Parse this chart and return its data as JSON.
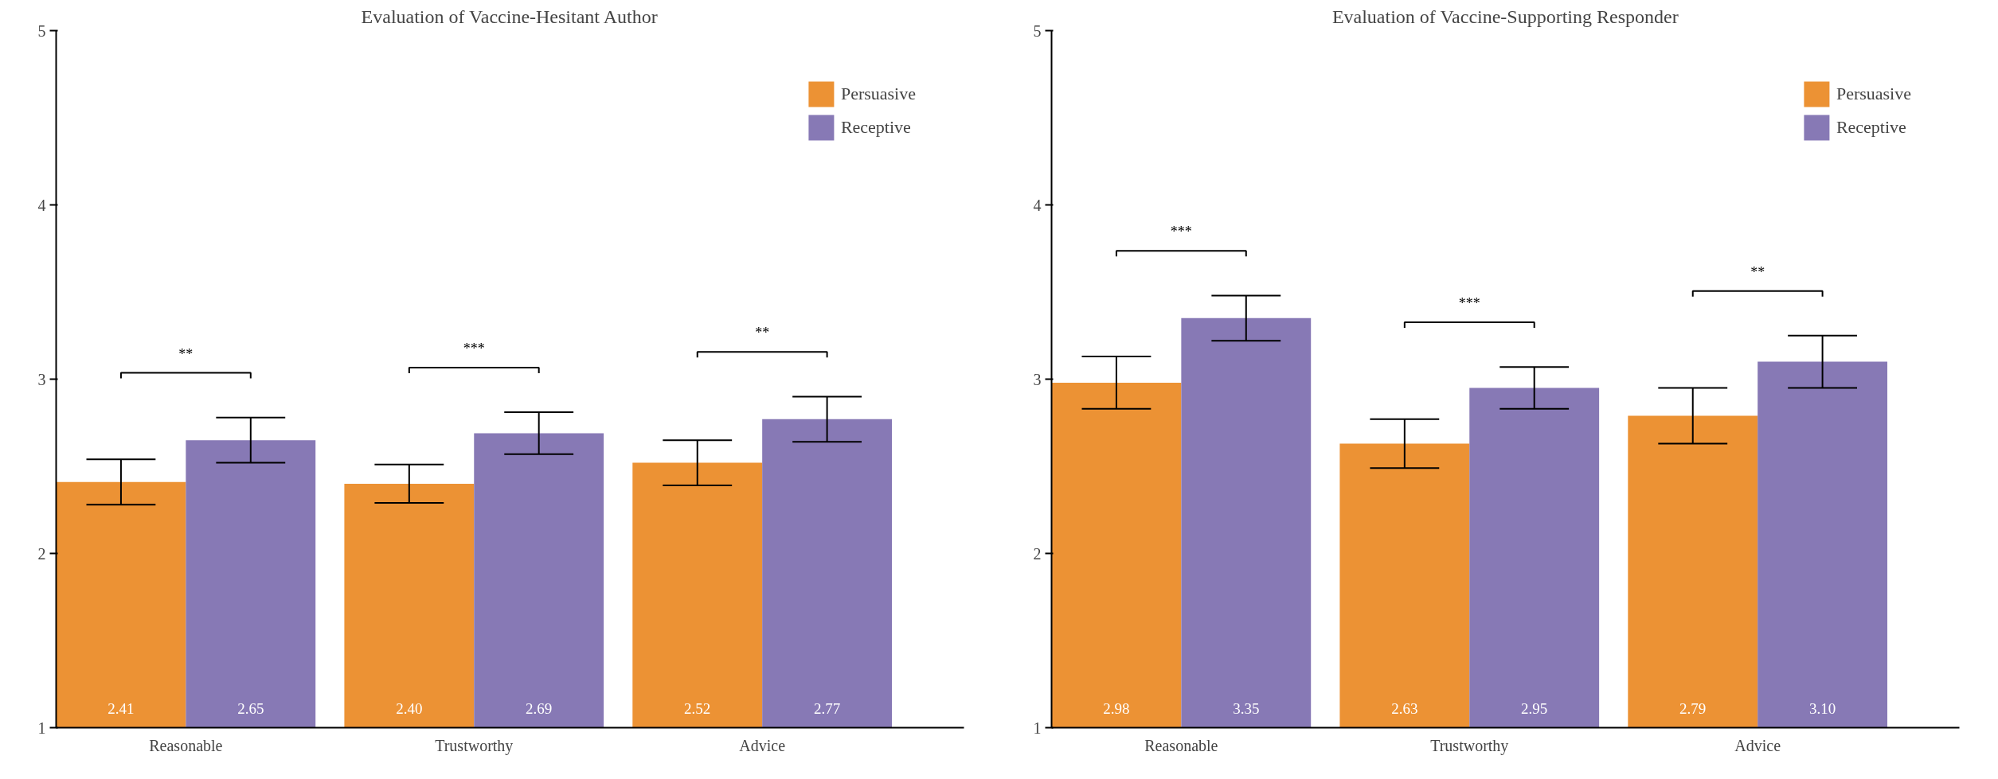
{
  "chart_data": [
    {
      "type": "bar",
      "title": "Evaluation of Vaccine-Hesitant Author",
      "categories": [
        "Reasonable",
        "Trustworthy",
        "Advice"
      ],
      "ylim": [
        1,
        5
      ],
      "yticks": [
        1,
        2,
        3,
        4,
        5
      ],
      "grid": false,
      "legend": "top right",
      "series": [
        {
          "name": "Persuasive",
          "color": "#ec9234",
          "values": [
            2.41,
            2.4,
            2.52
          ],
          "errors": [
            0.13,
            0.11,
            0.13
          ],
          "value_labels": [
            "2.41",
            "2.40",
            "2.52"
          ]
        },
        {
          "name": "Receptive",
          "color": "#8779b5",
          "values": [
            2.65,
            2.69,
            2.77
          ],
          "errors": [
            0.13,
            0.12,
            0.13
          ],
          "value_labels": [
            "2.65",
            "2.69",
            "2.77"
          ]
        }
      ],
      "annotations": [
        "**",
        "***",
        "**"
      ]
    },
    {
      "type": "bar",
      "title": "Evaluation of Vaccine-Supporting Responder",
      "categories": [
        "Reasonable",
        "Trustworthy",
        "Advice"
      ],
      "ylim": [
        1,
        5
      ],
      "yticks": [
        1,
        2,
        3,
        4,
        5
      ],
      "grid": false,
      "legend": "top right",
      "series": [
        {
          "name": "Persuasive",
          "color": "#ec9234",
          "values": [
            2.98,
            2.63,
            2.79
          ],
          "errors": [
            0.15,
            0.14,
            0.16
          ],
          "value_labels": [
            "2.98",
            "2.63",
            "2.79"
          ]
        },
        {
          "name": "Receptive",
          "color": "#8779b5",
          "values": [
            3.35,
            2.95,
            3.1
          ],
          "errors": [
            0.13,
            0.12,
            0.15
          ],
          "value_labels": [
            "3.35",
            "2.95",
            "3.10"
          ]
        }
      ],
      "annotations": [
        "***",
        "***",
        "**"
      ]
    }
  ]
}
